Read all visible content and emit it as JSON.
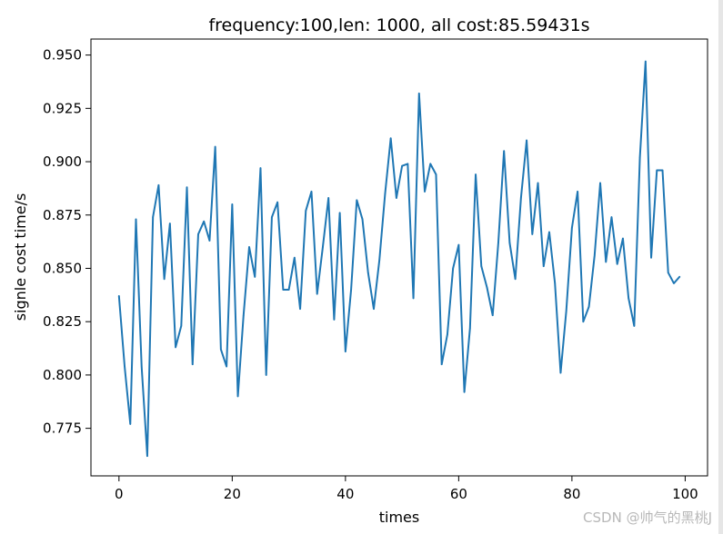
{
  "chart_data": {
    "type": "line",
    "title": "frequency:100,len: 1000, all cost:85.59431s",
    "xlabel": "times",
    "ylabel": "signle cost time/s",
    "xlim": [
      -4.95,
      103.95
    ],
    "ylim": [
      0.7527,
      0.9575
    ],
    "xticks": [
      0,
      20,
      40,
      60,
      80,
      100
    ],
    "yticks": [
      0.775,
      0.8,
      0.825,
      0.85,
      0.875,
      0.9,
      0.925,
      0.95
    ],
    "xtick_labels": [
      "0",
      "20",
      "40",
      "60",
      "80",
      "100"
    ],
    "ytick_labels": [
      "0.775",
      "0.800",
      "0.825",
      "0.850",
      "0.875",
      "0.900",
      "0.925",
      "0.950"
    ],
    "grid": false,
    "series": [
      {
        "color": "#1f77b4",
        "x": [
          0,
          1,
          2,
          3,
          4,
          5,
          6,
          7,
          8,
          9,
          10,
          11,
          12,
          13,
          14,
          15,
          16,
          17,
          18,
          19,
          20,
          21,
          22,
          23,
          24,
          25,
          26,
          27,
          28,
          29,
          30,
          31,
          32,
          33,
          34,
          35,
          36,
          37,
          38,
          39,
          40,
          41,
          42,
          43,
          44,
          45,
          46,
          47,
          48,
          49,
          50,
          51,
          52,
          53,
          54,
          55,
          56,
          57,
          58,
          59,
          60,
          61,
          62,
          63,
          64,
          65,
          66,
          67,
          68,
          69,
          70,
          71,
          72,
          73,
          74,
          75,
          76,
          77,
          78,
          79,
          80,
          81,
          82,
          83,
          84,
          85,
          86,
          87,
          88,
          89,
          90,
          91,
          92,
          93,
          94,
          95,
          96,
          97,
          98,
          99
        ],
        "y": [
          0.837,
          0.804,
          0.777,
          0.873,
          0.804,
          0.762,
          0.874,
          0.889,
          0.845,
          0.871,
          0.813,
          0.823,
          0.888,
          0.805,
          0.866,
          0.872,
          0.863,
          0.907,
          0.812,
          0.804,
          0.88,
          0.79,
          0.828,
          0.86,
          0.846,
          0.897,
          0.8,
          0.874,
          0.881,
          0.84,
          0.84,
          0.855,
          0.831,
          0.877,
          0.886,
          0.838,
          0.86,
          0.883,
          0.826,
          0.876,
          0.811,
          0.84,
          0.882,
          0.873,
          0.848,
          0.831,
          0.854,
          0.885,
          0.911,
          0.883,
          0.898,
          0.899,
          0.836,
          0.932,
          0.886,
          0.899,
          0.894,
          0.805,
          0.819,
          0.85,
          0.861,
          0.792,
          0.822,
          0.894,
          0.851,
          0.841,
          0.828,
          0.862,
          0.905,
          0.862,
          0.845,
          0.883,
          0.91,
          0.866,
          0.89,
          0.851,
          0.867,
          0.843,
          0.801,
          0.83,
          0.869,
          0.886,
          0.825,
          0.832,
          0.856,
          0.89,
          0.853,
          0.874,
          0.852,
          0.864,
          0.836,
          0.823,
          0.902,
          0.947,
          0.855,
          0.896,
          0.896,
          0.848,
          0.843,
          0.846
        ]
      }
    ]
  },
  "watermark": "CSDN @帅气的黑桃J"
}
